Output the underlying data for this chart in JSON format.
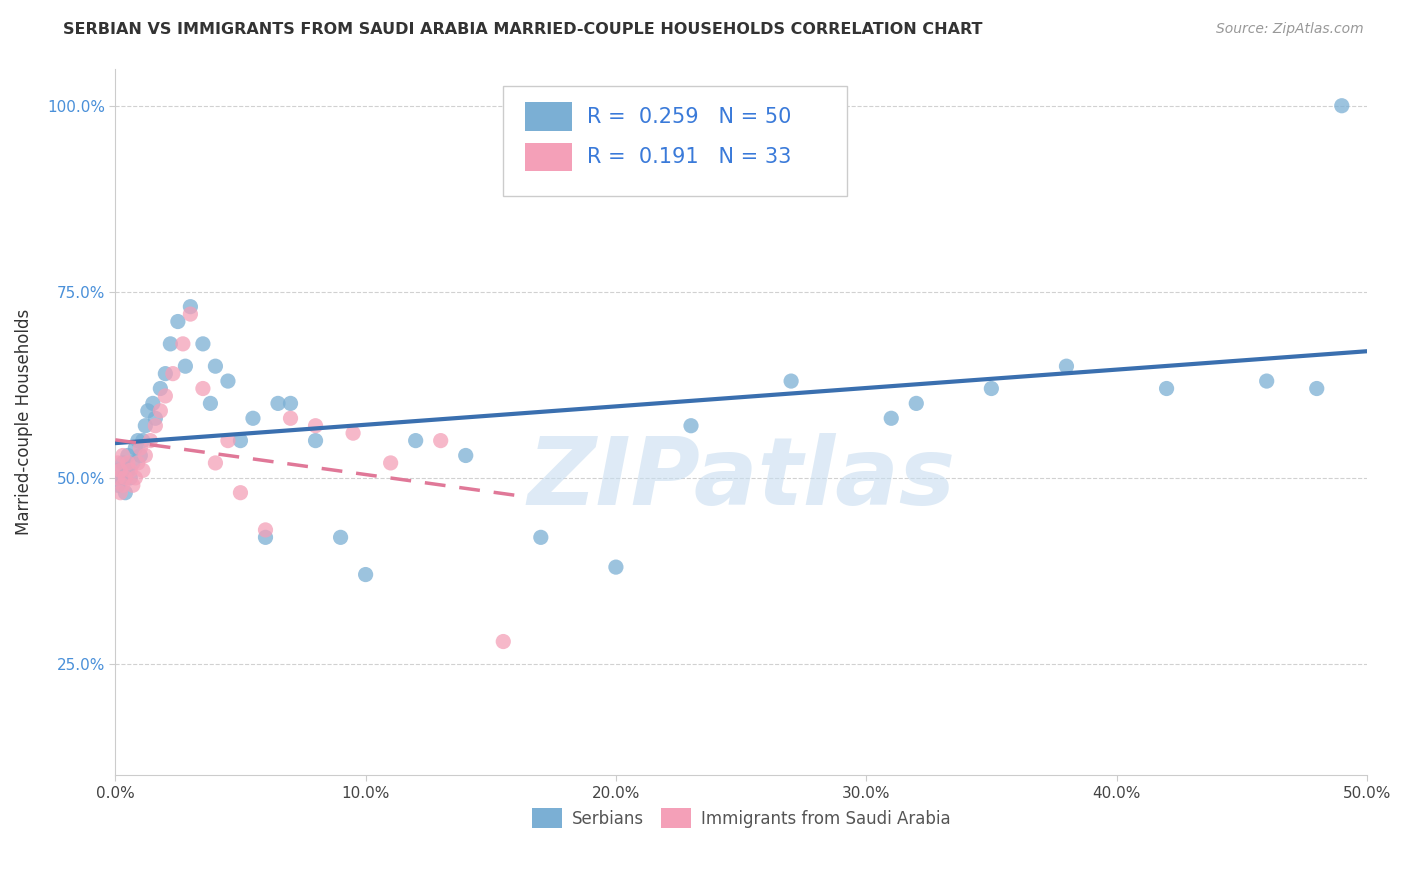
{
  "title": "SERBIAN VS IMMIGRANTS FROM SAUDI ARABIA MARRIED-COUPLE HOUSEHOLDS CORRELATION CHART",
  "source": "Source: ZipAtlas.com",
  "ylabel": "Married-couple Households",
  "xlim": [
    0.0,
    0.5
  ],
  "ylim": [
    0.1,
    1.05
  ],
  "xtick_labels": [
    "0.0%",
    "10.0%",
    "20.0%",
    "30.0%",
    "40.0%",
    "50.0%"
  ],
  "xtick_vals": [
    0.0,
    0.1,
    0.2,
    0.3,
    0.4,
    0.5
  ],
  "ytick_labels": [
    "25.0%",
    "50.0%",
    "75.0%",
    "100.0%"
  ],
  "ytick_vals": [
    0.25,
    0.5,
    0.75,
    1.0
  ],
  "legend_entries": [
    "Serbians",
    "Immigrants from Saudi Arabia"
  ],
  "R_serbian": 0.259,
  "N_serbian": 50,
  "R_saudi": 0.191,
  "N_saudi": 33,
  "color_serbian": "#7bafd4",
  "color_saudi": "#f4a0b8",
  "trendline_serbian_color": "#3a6faf",
  "trendline_saudi_color": "#e07898",
  "watermark": "ZIPatlas",
  "watermark_color": "#c8ddf0",
  "background_color": "#ffffff",
  "serbian_x": [
    0.001,
    0.001,
    0.002,
    0.003,
    0.004,
    0.004,
    0.005,
    0.005,
    0.006,
    0.007,
    0.008,
    0.009,
    0.01,
    0.011,
    0.012,
    0.013,
    0.015,
    0.016,
    0.018,
    0.02,
    0.022,
    0.025,
    0.028,
    0.03,
    0.035,
    0.038,
    0.04,
    0.045,
    0.05,
    0.055,
    0.06,
    0.065,
    0.07,
    0.08,
    0.09,
    0.1,
    0.12,
    0.14,
    0.17,
    0.2,
    0.23,
    0.27,
    0.31,
    0.32,
    0.35,
    0.38,
    0.42,
    0.46,
    0.48,
    0.49
  ],
  "serbian_y": [
    0.49,
    0.51,
    0.5,
    0.52,
    0.48,
    0.5,
    0.51,
    0.53,
    0.5,
    0.52,
    0.54,
    0.55,
    0.53,
    0.55,
    0.57,
    0.59,
    0.6,
    0.58,
    0.62,
    0.64,
    0.68,
    0.71,
    0.65,
    0.73,
    0.68,
    0.6,
    0.65,
    0.63,
    0.55,
    0.58,
    0.42,
    0.6,
    0.6,
    0.55,
    0.42,
    0.37,
    0.55,
    0.53,
    0.42,
    0.38,
    0.57,
    0.63,
    0.58,
    0.6,
    0.62,
    0.65,
    0.62,
    0.63,
    0.62,
    1.0
  ],
  "saudi_x": [
    0.001,
    0.001,
    0.002,
    0.002,
    0.003,
    0.003,
    0.004,
    0.005,
    0.006,
    0.007,
    0.008,
    0.009,
    0.01,
    0.011,
    0.012,
    0.014,
    0.016,
    0.018,
    0.02,
    0.023,
    0.027,
    0.03,
    0.035,
    0.04,
    0.045,
    0.05,
    0.06,
    0.07,
    0.08,
    0.095,
    0.11,
    0.13,
    0.155
  ],
  "saudi_y": [
    0.5,
    0.52,
    0.48,
    0.51,
    0.49,
    0.53,
    0.5,
    0.52,
    0.51,
    0.49,
    0.5,
    0.52,
    0.54,
    0.51,
    0.53,
    0.55,
    0.57,
    0.59,
    0.61,
    0.64,
    0.68,
    0.72,
    0.62,
    0.52,
    0.55,
    0.48,
    0.43,
    0.58,
    0.57,
    0.56,
    0.52,
    0.55,
    0.28
  ]
}
